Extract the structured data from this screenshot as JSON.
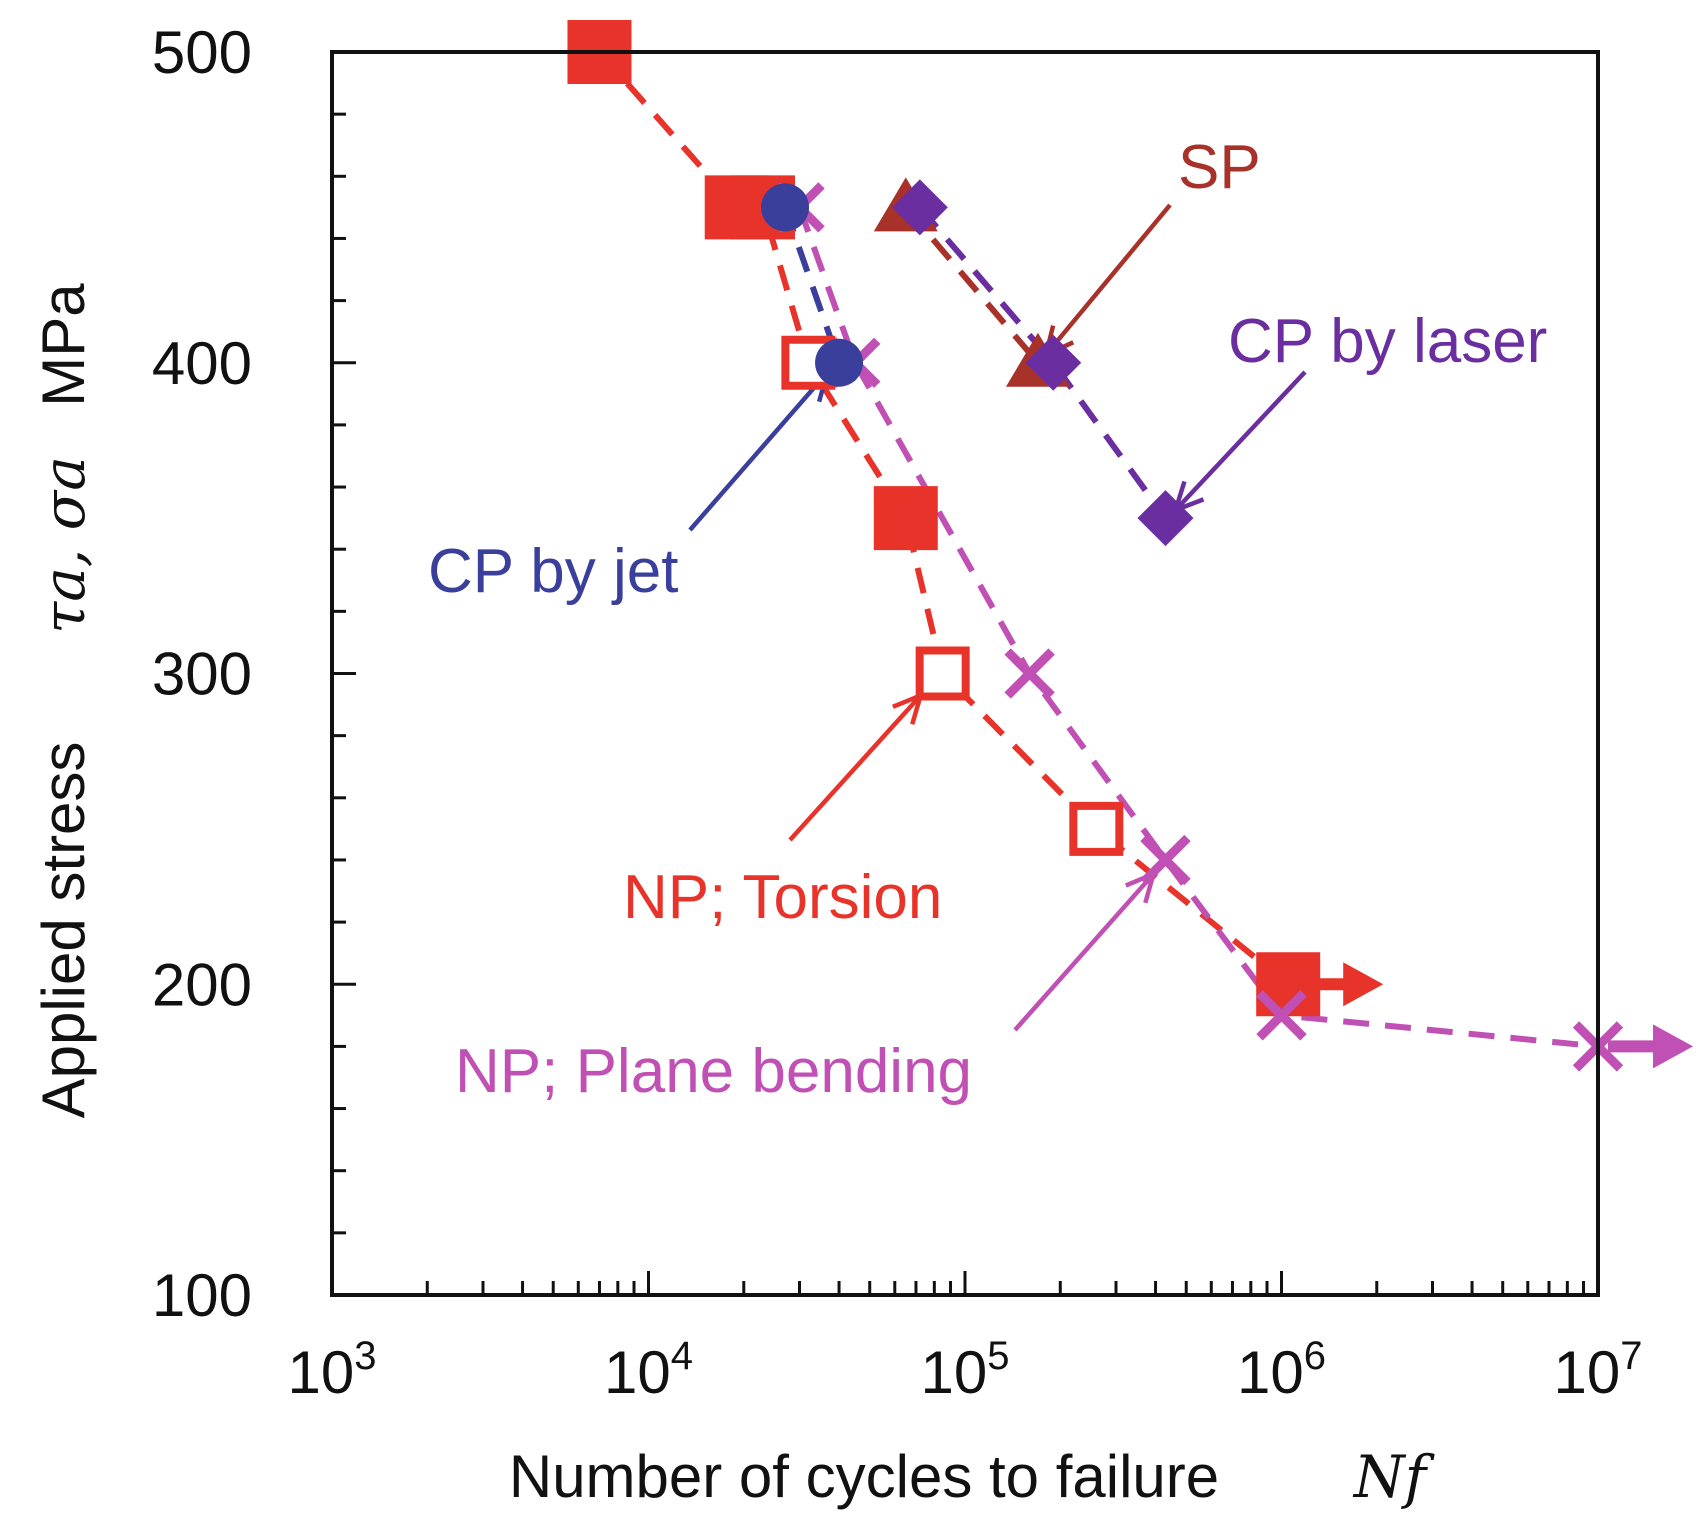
{
  "chart_data": {
    "type": "scatter",
    "xscale": "log",
    "xlim": [
      1000,
      10000000
    ],
    "ylim": [
      100,
      500
    ],
    "x_tick_labels": [
      {
        "base": "10",
        "exp": "3",
        "value": 1000
      },
      {
        "base": "10",
        "exp": "4",
        "value": 10000
      },
      {
        "base": "10",
        "exp": "5",
        "value": 100000
      },
      {
        "base": "10",
        "exp": "6",
        "value": 1000000
      },
      {
        "base": "10",
        "exp": "7",
        "value": 10000000
      }
    ],
    "y_ticks": [
      100,
      200,
      300,
      400,
      500
    ],
    "y_tick_labels": [
      "100",
      "200",
      "300",
      "400",
      "500"
    ],
    "xlabel": "Number of cycles to failure",
    "xlabel_symbol": "Nf",
    "ylabel": "Applied stress",
    "ylabel_symbol": "τa, σa",
    "ylabel_unit": "MPa",
    "grid": false,
    "series": [
      {
        "name": "NP; Torsion",
        "color": "#e8332a",
        "points": [
          {
            "x": 7000,
            "y": 500,
            "marker": "square-filled"
          },
          {
            "x": 19000,
            "y": 450,
            "marker": "square-filled"
          },
          {
            "x": 23000,
            "y": 450,
            "marker": "square-filled"
          },
          {
            "x": 32000,
            "y": 400,
            "marker": "square-open"
          },
          {
            "x": 65000,
            "y": 350,
            "marker": "square-filled"
          },
          {
            "x": 85000,
            "y": 300,
            "marker": "square-open"
          },
          {
            "x": 260000,
            "y": 250,
            "marker": "square-open"
          },
          {
            "x": 1050000,
            "y": 200,
            "marker": "square-filled",
            "runout": true
          }
        ]
      },
      {
        "name": "NP; Plane bending",
        "color": "#c050b4",
        "points": [
          {
            "x": 30000,
            "y": 450,
            "marker": "cross"
          },
          {
            "x": 45000,
            "y": 400,
            "marker": "cross"
          },
          {
            "x": 160000,
            "y": 300,
            "marker": "cross"
          },
          {
            "x": 430000,
            "y": 240,
            "marker": "cross"
          },
          {
            "x": 1000000,
            "y": 190,
            "marker": "cross"
          },
          {
            "x": 10000000,
            "y": 180,
            "marker": "cross",
            "runout": true
          }
        ]
      },
      {
        "name": "CP by jet",
        "color": "#3b3f9c",
        "points": [
          {
            "x": 27000,
            "y": 450,
            "marker": "circle"
          },
          {
            "x": 40000,
            "y": 400,
            "marker": "circle"
          }
        ]
      },
      {
        "name": "SP",
        "color": "#a8322a",
        "points": [
          {
            "x": 65000,
            "y": 450,
            "marker": "triangle"
          },
          {
            "x": 170000,
            "y": 400,
            "marker": "triangle"
          }
        ]
      },
      {
        "name": "CP by laser",
        "color": "#6a2ea0",
        "points": [
          {
            "x": 72000,
            "y": 450,
            "marker": "diamond"
          },
          {
            "x": 190000,
            "y": 400,
            "marker": "diamond"
          },
          {
            "x": 430000,
            "y": 350,
            "marker": "diamond"
          }
        ]
      }
    ],
    "annotations": [
      {
        "text": "SP",
        "series": "SP"
      },
      {
        "text": "CP by laser",
        "series": "CP by laser"
      },
      {
        "text": "CP by jet",
        "series": "CP by jet"
      },
      {
        "text": "NP; Torsion",
        "series": "NP; Torsion"
      },
      {
        "text": "NP; Plane bending",
        "series": "NP; Plane bending"
      }
    ]
  }
}
